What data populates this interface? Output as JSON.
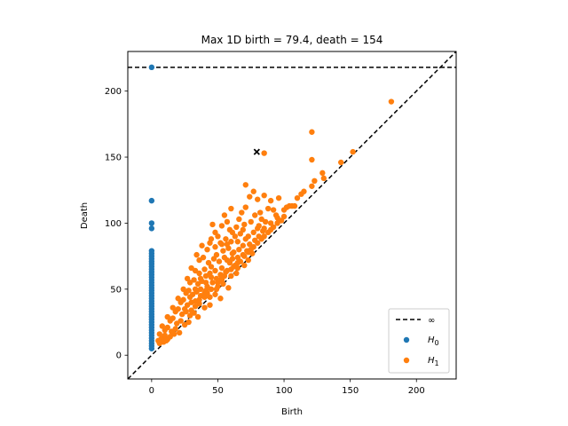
{
  "chart_data": {
    "type": "scatter",
    "title": "Max 1D birth = 79.4, death = 154",
    "xlabel": "Birth",
    "ylabel": "Death",
    "xlim": [
      -18,
      230
    ],
    "ylim": [
      -18,
      230
    ],
    "xticks": [
      0,
      50,
      100,
      150,
      200
    ],
    "yticks": [
      0,
      50,
      100,
      150,
      200
    ],
    "infinity_value": 218,
    "grid": false,
    "legend": {
      "position": "bottom-right",
      "entries": [
        {
          "label": "∞",
          "style": "dashed-line",
          "color": "#000000"
        },
        {
          "label": "H",
          "sub": "0",
          "style": "dot",
          "color": "#1f77b4"
        },
        {
          "label": "H",
          "sub": "1",
          "style": "dot",
          "color": "#ff7f0e"
        }
      ]
    },
    "highlight": {
      "birth": 79.4,
      "death": 154,
      "marker": "x",
      "color": "#000000"
    },
    "series": [
      {
        "name": "H0",
        "color": "#1f77b4",
        "points": [
          [
            0,
            218
          ],
          [
            0,
            117
          ],
          [
            0,
            100
          ],
          [
            0,
            96
          ],
          [
            0,
            79
          ],
          [
            0,
            77
          ],
          [
            0,
            75
          ],
          [
            0,
            73
          ],
          [
            0,
            71
          ],
          [
            0,
            69
          ],
          [
            0,
            67
          ],
          [
            0,
            65
          ],
          [
            0,
            63
          ],
          [
            0,
            61
          ],
          [
            0,
            59
          ],
          [
            0,
            57
          ],
          [
            0,
            55
          ],
          [
            0,
            53
          ],
          [
            0,
            51
          ],
          [
            0,
            49
          ],
          [
            0,
            47
          ],
          [
            0,
            45
          ],
          [
            0,
            43
          ],
          [
            0,
            41
          ],
          [
            0,
            39
          ],
          [
            0,
            37
          ],
          [
            0,
            35
          ],
          [
            0,
            33
          ],
          [
            0,
            31
          ],
          [
            0,
            29
          ],
          [
            0,
            27
          ],
          [
            0,
            25
          ],
          [
            0,
            23
          ],
          [
            0,
            21
          ],
          [
            0,
            19
          ],
          [
            0,
            17
          ],
          [
            0,
            15
          ],
          [
            0,
            13
          ],
          [
            0,
            11
          ],
          [
            0,
            9
          ],
          [
            0,
            7
          ],
          [
            0,
            5
          ]
        ]
      },
      {
        "name": "H1",
        "color": "#ff7f0e",
        "points": [
          [
            181,
            192
          ],
          [
            121,
            169
          ],
          [
            121,
            148
          ],
          [
            85,
            153
          ],
          [
            152,
            154
          ],
          [
            143,
            146
          ],
          [
            129,
            138
          ],
          [
            123,
            132
          ],
          [
            130,
            134
          ],
          [
            115,
            124
          ],
          [
            113,
            122
          ],
          [
            110,
            119
          ],
          [
            121,
            128
          ],
          [
            104,
            113
          ],
          [
            106,
            113
          ],
          [
            100,
            110
          ],
          [
            102,
            112
          ],
          [
            71,
            129
          ],
          [
            77,
            124
          ],
          [
            80,
            118
          ],
          [
            74,
            120
          ],
          [
            85,
            121
          ],
          [
            90,
            117
          ],
          [
            96,
            119
          ],
          [
            88,
            111
          ],
          [
            92,
            110
          ],
          [
            94,
            106
          ],
          [
            82,
            108
          ],
          [
            60,
            111
          ],
          [
            66,
            103
          ],
          [
            68,
            108
          ],
          [
            71,
            112
          ],
          [
            78,
            106
          ],
          [
            83,
            103
          ],
          [
            86,
            101
          ],
          [
            90,
            100
          ],
          [
            95,
            104
          ],
          [
            55,
            106
          ],
          [
            57,
            101
          ],
          [
            53,
            98
          ],
          [
            59,
            95
          ],
          [
            64,
            97
          ],
          [
            70,
            99
          ],
          [
            75,
            101
          ],
          [
            80,
            96
          ],
          [
            84,
            94
          ],
          [
            88,
            93
          ],
          [
            46,
            99
          ],
          [
            48,
            93
          ],
          [
            45,
            88
          ],
          [
            50,
            90
          ],
          [
            52,
            85
          ],
          [
            56,
            88
          ],
          [
            60,
            86
          ],
          [
            63,
            90
          ],
          [
            67,
            92
          ],
          [
            71,
            88
          ],
          [
            74,
            84
          ],
          [
            78,
            87
          ],
          [
            81,
            90
          ],
          [
            38,
            83
          ],
          [
            42,
            80
          ],
          [
            44,
            85
          ],
          [
            48,
            82
          ],
          [
            54,
            79
          ],
          [
            58,
            81
          ],
          [
            62,
            78
          ],
          [
            66,
            80
          ],
          [
            69,
            76
          ],
          [
            72,
            79
          ],
          [
            76,
            77
          ],
          [
            34,
            76
          ],
          [
            36,
            72
          ],
          [
            39,
            74
          ],
          [
            43,
            70
          ],
          [
            47,
            73
          ],
          [
            51,
            71
          ],
          [
            55,
            74
          ],
          [
            59,
            70
          ],
          [
            63,
            68
          ],
          [
            67,
            71
          ],
          [
            70,
            68
          ],
          [
            30,
            66
          ],
          [
            33,
            64
          ],
          [
            36,
            62
          ],
          [
            40,
            65
          ],
          [
            44,
            62
          ],
          [
            48,
            64
          ],
          [
            52,
            61
          ],
          [
            56,
            63
          ],
          [
            60,
            60
          ],
          [
            64,
            62
          ],
          [
            27,
            58
          ],
          [
            29,
            55
          ],
          [
            32,
            57
          ],
          [
            35,
            54
          ],
          [
            38,
            56
          ],
          [
            42,
            52
          ],
          [
            46,
            55
          ],
          [
            50,
            52
          ],
          [
            54,
            54
          ],
          [
            58,
            51
          ],
          [
            24,
            50
          ],
          [
            26,
            47
          ],
          [
            28,
            49
          ],
          [
            31,
            46
          ],
          [
            34,
            48
          ],
          [
            37,
            45
          ],
          [
            40,
            47
          ],
          [
            44,
            44
          ],
          [
            48,
            46
          ],
          [
            52,
            43
          ],
          [
            20,
            43
          ],
          [
            22,
            40
          ],
          [
            24,
            42
          ],
          [
            27,
            38
          ],
          [
            30,
            40
          ],
          [
            33,
            37
          ],
          [
            36,
            39
          ],
          [
            40,
            36
          ],
          [
            44,
            38
          ],
          [
            16,
            36
          ],
          [
            18,
            33
          ],
          [
            20,
            35
          ],
          [
            23,
            31
          ],
          [
            26,
            33
          ],
          [
            29,
            30
          ],
          [
            32,
            32
          ],
          [
            35,
            29
          ],
          [
            12,
            29
          ],
          [
            14,
            26
          ],
          [
            16,
            28
          ],
          [
            19,
            24
          ],
          [
            22,
            26
          ],
          [
            25,
            23
          ],
          [
            28,
            25
          ],
          [
            8,
            22
          ],
          [
            10,
            19
          ],
          [
            12,
            21
          ],
          [
            15,
            18
          ],
          [
            18,
            20
          ],
          [
            21,
            17
          ],
          [
            6,
            16
          ],
          [
            8,
            13
          ],
          [
            10,
            15
          ],
          [
            12,
            12
          ],
          [
            14,
            14
          ],
          [
            17,
            16
          ],
          [
            5,
            11
          ],
          [
            6,
            9
          ],
          [
            7,
            12
          ],
          [
            9,
            10
          ],
          [
            11,
            11
          ],
          [
            36,
            42
          ],
          [
            45,
            50
          ],
          [
            55,
            60
          ],
          [
            65,
            70
          ],
          [
            75,
            80
          ],
          [
            85,
            90
          ],
          [
            95,
            100
          ],
          [
            100,
            105
          ],
          [
            108,
            113
          ],
          [
            40,
            44
          ],
          [
            50,
            55
          ],
          [
            60,
            65
          ],
          [
            70,
            75
          ],
          [
            80,
            85
          ],
          [
            90,
            95
          ],
          [
            98,
            102
          ],
          [
            30,
            34
          ],
          [
            42,
            47
          ],
          [
            53,
            58
          ],
          [
            62,
            67
          ],
          [
            73,
            78
          ],
          [
            83,
            88
          ],
          [
            92,
            97
          ],
          [
            57,
            84
          ],
          [
            61,
            93
          ],
          [
            65,
            86
          ],
          [
            69,
            95
          ],
          [
            73,
            90
          ],
          [
            77,
            93
          ],
          [
            81,
            98
          ],
          [
            85,
            96
          ],
          [
            49,
            76
          ],
          [
            53,
            84
          ],
          [
            57,
            72
          ],
          [
            61,
            77
          ],
          [
            65,
            74
          ],
          [
            69,
            83
          ],
          [
            73,
            72
          ],
          [
            77,
            82
          ],
          [
            41,
            60
          ],
          [
            45,
            67
          ],
          [
            49,
            58
          ],
          [
            53,
            66
          ],
          [
            57,
            64
          ],
          [
            61,
            73
          ],
          [
            65,
            66
          ],
          [
            33,
            50
          ],
          [
            37,
            58
          ],
          [
            41,
            55
          ],
          [
            45,
            59
          ],
          [
            49,
            50
          ],
          [
            53,
            57
          ],
          [
            25,
            35
          ],
          [
            29,
            44
          ],
          [
            33,
            41
          ],
          [
            37,
            50
          ],
          [
            41,
            49
          ]
        ]
      }
    ]
  }
}
